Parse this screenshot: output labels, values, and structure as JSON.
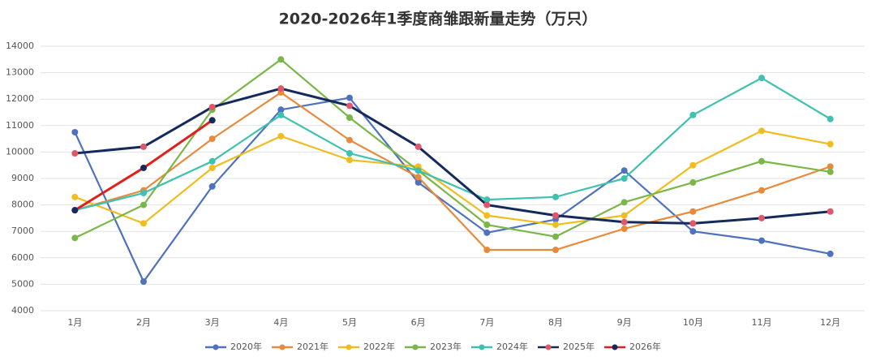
{
  "chart_data": {
    "type": "line",
    "title": "2020-2026年1季度商雏跟新量走势（万只）",
    "categories": [
      "1月",
      "2月",
      "3月",
      "4月",
      "5月",
      "6月",
      "7月",
      "8月",
      "9月",
      "10月",
      "11月",
      "12月"
    ],
    "ylim": [
      4000,
      14000
    ],
    "yticks": [
      4000,
      5000,
      6000,
      7000,
      8000,
      9000,
      10000,
      11000,
      12000,
      13000,
      14000
    ],
    "grid": true,
    "legend": "bottom",
    "series": [
      {
        "name": "2020年",
        "color": "#4e72be",
        "marker_color": "#4e72be",
        "values": [
          10750,
          5100,
          8700,
          11600,
          12050,
          8850,
          6950,
          7450,
          9300,
          7000,
          6650,
          6150
        ]
      },
      {
        "name": "2021年",
        "color": "#e88a3c",
        "marker_color": "#e88a3c",
        "values": [
          7800,
          8550,
          10500,
          12250,
          10450,
          9050,
          6300,
          6300,
          7100,
          7750,
          8550,
          9450
        ]
      },
      {
        "name": "2022年",
        "color": "#efbd1f",
        "marker_color": "#efbd1f",
        "values": [
          8300,
          7300,
          9400,
          10600,
          9700,
          9450,
          7600,
          7250,
          7600,
          9500,
          10800,
          10300
        ]
      },
      {
        "name": "2023年",
        "color": "#7ab648",
        "marker_color": "#7ab648",
        "values": [
          6750,
          8000,
          11600,
          13500,
          11300,
          9300,
          7250,
          6800,
          8100,
          8850,
          9650,
          9250
        ]
      },
      {
        "name": "2024年",
        "color": "#3fc1b0",
        "marker_color": "#3fc1b0",
        "values": [
          7800,
          8450,
          9650,
          11400,
          9950,
          9300,
          8200,
          8300,
          9000,
          11400,
          12800,
          11250
        ]
      },
      {
        "name": "2025年",
        "color": "#142a5c",
        "marker_color": "#e0566a",
        "values": [
          9950,
          10200,
          11700,
          12400,
          11750,
          10200,
          8000,
          7600,
          7350,
          7300,
          7500,
          7750
        ]
      },
      {
        "name": "2026年",
        "color": "#e0201c",
        "marker_color": "#142a5c",
        "values": [
          7800,
          9400,
          11200,
          null,
          null,
          null,
          null,
          null,
          null,
          null,
          null,
          null
        ]
      }
    ]
  }
}
